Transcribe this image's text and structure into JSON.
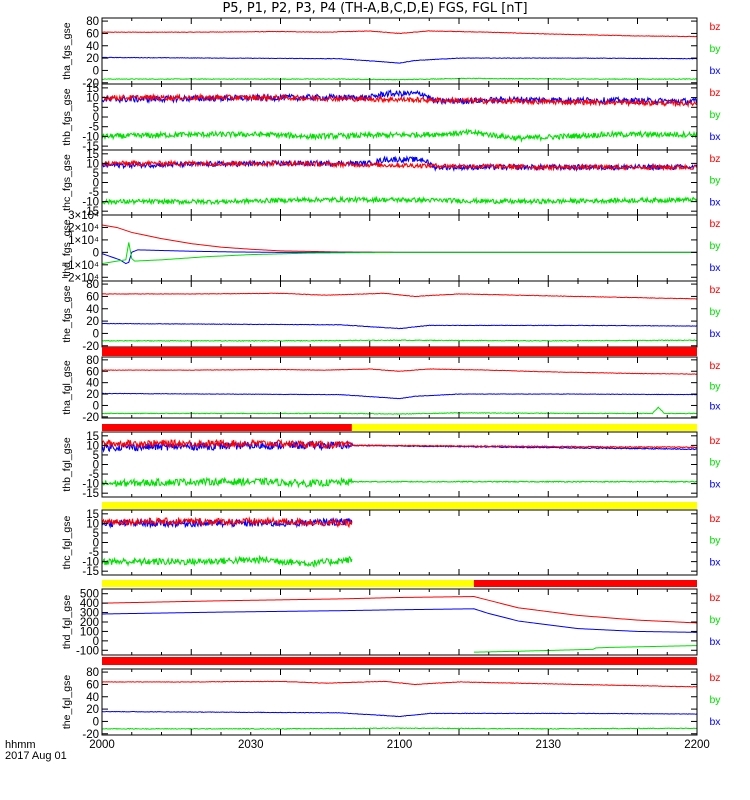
{
  "title": "P5, P1, P2, P3, P4 (TH-A,B,C,D,E) FGS, FGL [nT]",
  "time_axis": {
    "ticks": [
      "2000",
      "2030",
      "2100",
      "2130",
      "2200"
    ],
    "label_line1": "hhmm",
    "label_line2": "2017 Aug 01"
  },
  "colors": {
    "bz": "#ff0000",
    "by": "#00e000",
    "bx": "#0000ff",
    "bar_red": "#ff0000",
    "bar_yellow": "#ffff00",
    "bar_black": "#000000"
  },
  "legend": [
    "bz",
    "by",
    "bx"
  ],
  "chart_data": [
    {
      "type": "line",
      "ylabel": "tha_fgs_gse",
      "ylim": [
        -22,
        85
      ],
      "yticks": [
        80,
        60,
        40,
        20,
        0,
        -20
      ],
      "ytick_labels": [
        "80",
        "60",
        "40",
        "20",
        "0",
        "-20"
      ],
      "series": [
        {
          "name": "bz",
          "x": [
            0,
            30,
            60,
            75,
            90,
            100,
            110,
            130,
            150,
            180,
            200
          ],
          "values": [
            62,
            62,
            63,
            62,
            64,
            60,
            64,
            62,
            59,
            56,
            55
          ],
          "noise": 0.4
        },
        {
          "name": "by",
          "x": [
            0,
            40,
            80,
            100,
            120,
            160,
            200
          ],
          "values": [
            -14,
            -14,
            -14,
            -15,
            -13,
            -14,
            -14
          ],
          "noise": 0.6
        },
        {
          "name": "bx",
          "x": [
            0,
            40,
            80,
            100,
            105,
            120,
            160,
            200
          ],
          "values": [
            21,
            20,
            19,
            12,
            16,
            20,
            20,
            19
          ],
          "noise": 0.4
        }
      ]
    },
    {
      "type": "line",
      "ylabel": "thb_fgs_gse",
      "ylim": [
        -17,
        17
      ],
      "yticks": [
        15,
        10,
        5,
        0,
        -5,
        -10,
        -15
      ],
      "ytick_labels": [
        "15",
        "10",
        "5",
        "0",
        "-5",
        "-10",
        "-15"
      ],
      "series": [
        {
          "name": "by",
          "x": [
            0,
            30,
            55,
            70,
            110,
            125,
            140,
            170,
            200
          ],
          "values": [
            -10,
            -9,
            -9,
            -10,
            -9,
            -8,
            -11,
            -9,
            -9
          ],
          "noise": 1.4
        },
        {
          "name": "bx",
          "x": [
            0,
            60,
            90,
            95,
            108,
            112,
            140,
            200
          ],
          "values": [
            9,
            10,
            10,
            12,
            12,
            8,
            9,
            8
          ],
          "noise": 1.6
        },
        {
          "name": "bz",
          "x": [
            0,
            60,
            100,
            140,
            200
          ],
          "values": [
            10,
            10,
            9,
            8,
            7
          ],
          "noise": 1.3
        }
      ]
    },
    {
      "type": "line",
      "ylabel": "thc_fgs_gse",
      "ylim": [
        -17,
        17
      ],
      "yticks": [
        15,
        10,
        5,
        0,
        -5,
        -10,
        -15
      ],
      "ytick_labels": [
        "15",
        "10",
        "5",
        "0",
        "-5",
        "-10",
        "-15"
      ],
      "series": [
        {
          "name": "by",
          "x": [
            0,
            40,
            70,
            100,
            140,
            200
          ],
          "values": [
            -10,
            -10,
            -9,
            -9,
            -10,
            -9
          ],
          "noise": 1.2
        },
        {
          "name": "bx",
          "x": [
            0,
            60,
            90,
            95,
            108,
            112,
            150,
            200
          ],
          "values": [
            9,
            10,
            10,
            12,
            12,
            8,
            8,
            8
          ],
          "noise": 1.4
        },
        {
          "name": "bz",
          "x": [
            0,
            60,
            100,
            150,
            200
          ],
          "values": [
            10,
            10,
            9,
            8,
            8
          ],
          "noise": 1.2
        }
      ]
    },
    {
      "type": "line",
      "ylabel": "thd_fgs_gse",
      "ylim": [
        -23000,
        30000
      ],
      "yticks": [
        30000,
        20000,
        10000,
        0,
        -10000,
        -20000
      ],
      "ytick_labels": [
        "3×10⁴",
        "2×10⁴",
        "1×10⁴",
        "0",
        "−1×10⁴",
        "−2×10⁴"
      ],
      "series": [
        {
          "name": "bz",
          "x": [
            0,
            5,
            10,
            20,
            30,
            40,
            50,
            60,
            80,
            100,
            200
          ],
          "values": [
            22000,
            20000,
            16000,
            11000,
            7000,
            4200,
            2500,
            1200,
            300,
            0,
            0
          ],
          "noise": 0
        },
        {
          "name": "bx",
          "x": [
            0,
            6,
            8,
            9,
            10,
            12,
            20,
            30,
            45,
            60,
            200
          ],
          "values": [
            -1000,
            -6000,
            -9000,
            -8000,
            100,
            2000,
            1500,
            900,
            300,
            0,
            0
          ],
          "noise": 0
        },
        {
          "name": "by",
          "x": [
            0,
            5,
            8,
            9,
            10,
            11,
            20,
            35,
            50,
            70,
            100,
            200
          ],
          "values": [
            -9000,
            -7000,
            -6000,
            8000,
            -5000,
            -7000,
            -6000,
            -3500,
            -1800,
            -600,
            0,
            0
          ],
          "noise": 0
        }
      ]
    },
    {
      "type": "line",
      "ylabel": "the_fgs_gse",
      "ylim": [
        -22,
        85
      ],
      "yticks": [
        80,
        60,
        40,
        20,
        0,
        -20
      ],
      "ytick_labels": [
        "80",
        "60",
        "40",
        "20",
        "0",
        "-20"
      ],
      "series": [
        {
          "name": "bz",
          "x": [
            0,
            30,
            60,
            75,
            95,
            105,
            120,
            160,
            200
          ],
          "values": [
            64,
            64,
            65,
            62,
            65,
            60,
            64,
            60,
            56
          ],
          "noise": 0.4
        },
        {
          "name": "by",
          "x": [
            0,
            60,
            100,
            150,
            200
          ],
          "values": [
            -12,
            -12,
            -11,
            -12,
            -11
          ],
          "noise": 0.6
        },
        {
          "name": "bx",
          "x": [
            0,
            40,
            80,
            100,
            110,
            160,
            200
          ],
          "values": [
            16,
            15,
            14,
            8,
            13,
            13,
            12
          ],
          "noise": 0.4
        }
      ]
    },
    {
      "type": "line",
      "ylabel": "tha_fgl_gse",
      "ylim": [
        -22,
        85
      ],
      "yticks": [
        80,
        60,
        40,
        20,
        0,
        -20
      ],
      "ytick_labels": [
        "80",
        "60",
        "40",
        "20",
        "0",
        "-20"
      ],
      "series": [
        {
          "name": "bz",
          "x": [
            0,
            30,
            60,
            75,
            90,
            100,
            110,
            130,
            150,
            180,
            200
          ],
          "values": [
            62,
            62,
            63,
            62,
            64,
            60,
            64,
            62,
            59,
            56,
            55
          ],
          "noise": 0.4
        },
        {
          "name": "by",
          "x": [
            0,
            40,
            80,
            100,
            120,
            160,
            185,
            187,
            189,
            200
          ],
          "values": [
            -14,
            -14,
            -14,
            -15,
            -13,
            -14,
            -14,
            -3,
            -14,
            -14
          ],
          "noise": 0.6
        },
        {
          "name": "bx",
          "x": [
            0,
            40,
            80,
            100,
            105,
            120,
            160,
            200
          ],
          "values": [
            21,
            20,
            19,
            12,
            16,
            20,
            20,
            19
          ],
          "noise": 0.4
        }
      ]
    },
    {
      "type": "line",
      "ylabel": "thb_fgl_gse",
      "ylim": [
        -17,
        17
      ],
      "yticks": [
        15,
        10,
        5,
        0,
        -5,
        -10,
        -15
      ],
      "ytick_labels": [
        "15",
        "10",
        "5",
        "0",
        "-5",
        "-10",
        "-15"
      ],
      "series": [
        {
          "name": "by",
          "x": [
            0,
            30,
            55,
            70,
            84,
            200
          ],
          "values": [
            -10,
            -9,
            -9,
            -10,
            -9,
            -9
          ],
          "noise": 1.8,
          "noise_until": 84
        },
        {
          "name": "bx",
          "x": [
            0,
            60,
            84,
            200
          ],
          "values": [
            9,
            10,
            10,
            8
          ],
          "noise": 2.0,
          "noise_until": 84
        },
        {
          "name": "bz",
          "x": [
            0,
            60,
            84,
            200
          ],
          "values": [
            11,
            11,
            10,
            9
          ],
          "noise": 1.8,
          "noise_until": 84
        }
      ]
    },
    {
      "type": "line",
      "ylabel": "thc_fgl_gse",
      "ylim": [
        -17,
        17
      ],
      "yticks": [
        15,
        10,
        5,
        0,
        -5,
        -10,
        -15
      ],
      "ytick_labels": [
        "15",
        "10",
        "5",
        "0",
        "-5",
        "-10",
        "-15"
      ],
      "series": [
        {
          "name": "by",
          "x": [
            0,
            30,
            55,
            70,
            84
          ],
          "values": [
            -10,
            -10,
            -9,
            -11,
            -9
          ],
          "noise": 1.8
        },
        {
          "name": "bx",
          "x": [
            0,
            60,
            84
          ],
          "values": [
            10,
            10,
            11
          ],
          "noise": 1.8
        },
        {
          "name": "bz",
          "x": [
            0,
            60,
            84
          ],
          "values": [
            11,
            11,
            10
          ],
          "noise": 1.8
        }
      ]
    },
    {
      "type": "line",
      "ylabel": "thd_fgl_gse",
      "ylim": [
        -150,
        550
      ],
      "yticks": [
        500,
        400,
        300,
        200,
        100,
        0,
        -100
      ],
      "ytick_labels": [
        "500",
        "400",
        "300",
        "200",
        "100",
        "0",
        "-100"
      ],
      "series": [
        {
          "name": "bz",
          "x": [
            0,
            40,
            80,
            100,
            125,
            130,
            140,
            160,
            180,
            200
          ],
          "values": [
            400,
            425,
            445,
            460,
            470,
            430,
            350,
            270,
            220,
            190
          ],
          "noise": 0
        },
        {
          "name": "bx",
          "x": [
            0,
            40,
            80,
            100,
            125,
            130,
            140,
            160,
            180,
            200
          ],
          "values": [
            285,
            305,
            320,
            330,
            340,
            290,
            210,
            130,
            100,
            90
          ],
          "noise": 0
        },
        {
          "name": "by",
          "x": [
            125,
            140,
            165,
            166,
            170,
            200
          ],
          "values": [
            -120,
            -110,
            -90,
            -75,
            -70,
            -50
          ],
          "noise": 0
        }
      ]
    },
    {
      "type": "line",
      "ylabel": "the_fgl_gse",
      "ylim": [
        -22,
        85
      ],
      "yticks": [
        80,
        60,
        40,
        20,
        0,
        -20
      ],
      "ytick_labels": [
        "80",
        "60",
        "40",
        "20",
        "0",
        "-20"
      ],
      "series": [
        {
          "name": "bz",
          "x": [
            0,
            30,
            60,
            75,
            95,
            105,
            120,
            160,
            200
          ],
          "values": [
            64,
            64,
            65,
            62,
            65,
            60,
            64,
            60,
            56
          ],
          "noise": 0.4
        },
        {
          "name": "by",
          "x": [
            0,
            60,
            100,
            150,
            200
          ],
          "values": [
            -12,
            -12,
            -11,
            -12,
            -11
          ],
          "noise": 0.6
        },
        {
          "name": "bx",
          "x": [
            0,
            40,
            80,
            100,
            110,
            160,
            200
          ],
          "values": [
            16,
            15,
            14,
            8,
            13,
            13,
            12
          ],
          "noise": 0.4
        }
      ]
    }
  ],
  "mode_bars": [
    {
      "after_panel": 4,
      "segments": [
        {
          "from": 0,
          "to": 200,
          "color": "red"
        }
      ]
    },
    {
      "after_panel": 5,
      "segments": [
        {
          "from": 0,
          "to": 84,
          "color": "red"
        },
        {
          "from": 84,
          "to": 200,
          "color": "yellow"
        }
      ]
    },
    {
      "after_panel": 6,
      "segments": [
        {
          "from": 0,
          "to": 200,
          "color": "yellow"
        }
      ]
    },
    {
      "after_panel": 7,
      "segments": [
        {
          "from": 0,
          "to": 125,
          "color": "yellow"
        },
        {
          "from": 125,
          "to": 200,
          "color": "red"
        }
      ]
    },
    {
      "after_panel": 8,
      "segments": [
        {
          "from": 0,
          "to": 200,
          "color": "red"
        }
      ]
    }
  ]
}
